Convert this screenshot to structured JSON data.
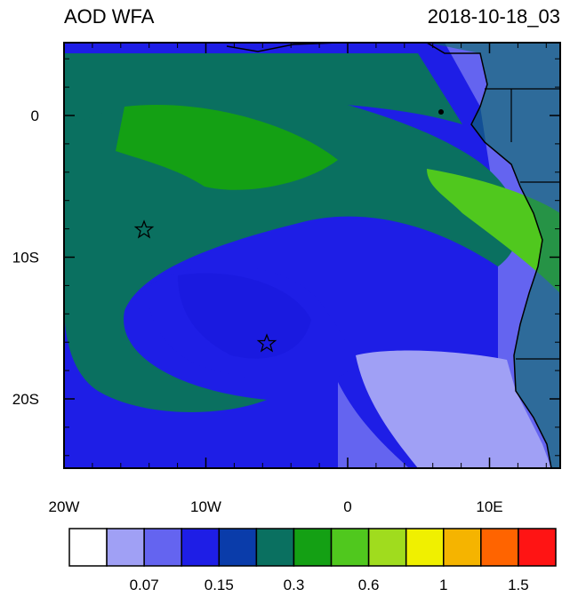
{
  "title": "AOD WFA",
  "date": "2018-10-18_03",
  "map": {
    "lat_ticks": [
      0,
      {
        "value": -10,
        "label": "10S"
      },
      {
        "value": -20,
        "label": "20S"
      }
    ],
    "lon_ticks": [
      {
        "value": -20,
        "label": "20W"
      },
      {
        "value": -10,
        "label": "10W"
      },
      0,
      {
        "value": 10,
        "label": "10E"
      }
    ]
  },
  "colorbar": {
    "colors": [
      "#ffffff",
      "#a0a0f5",
      "#6464f0",
      "#1e1ee6",
      "#0a3caa",
      "#0a7060",
      "#14a014",
      "#50c81e",
      "#a0dc1e",
      "#f0f000",
      "#f5b400",
      "#ff6400",
      "#ff1414"
    ],
    "labels": [
      "0.07",
      "0.15",
      "0.3",
      "0.6",
      "1",
      "1.5"
    ]
  }
}
